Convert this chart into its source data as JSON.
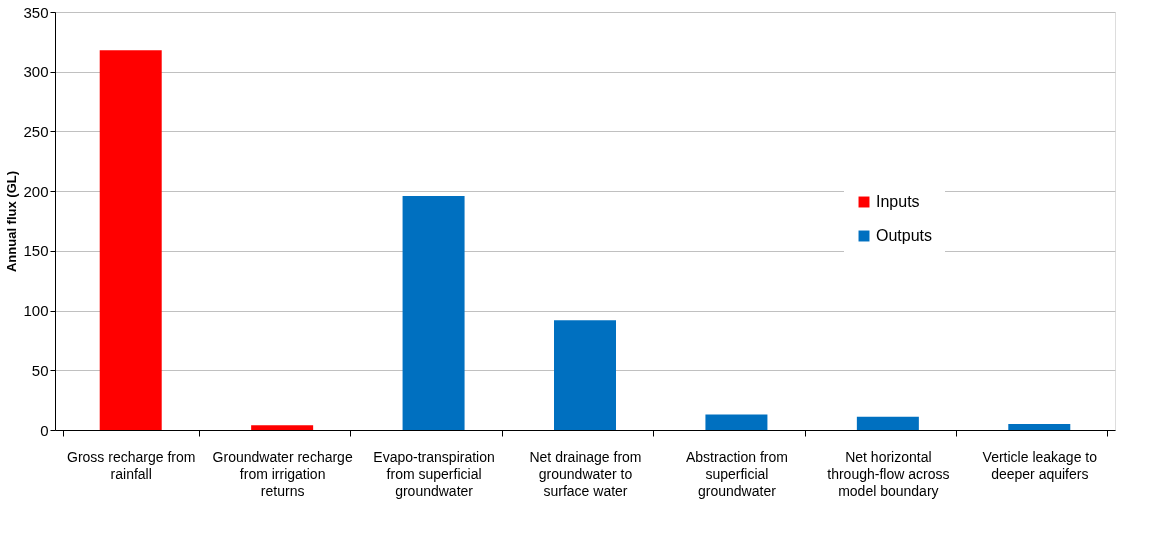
{
  "chart_data": {
    "type": "bar",
    "ylabel": "Annual flux (GL)",
    "categories": [
      "Gross recharge from rainfall",
      "Groundwater recharge from irrigation returns",
      "Evapo-transpiration from superficial groundwater",
      "Net drainage from groundwater to surface water",
      "Abstraction from superficial groundwater",
      "Net horizontal through-flow across model boundary",
      "Verticle leakage to deeper aquifers"
    ],
    "series": [
      {
        "name": "Inputs",
        "color": "#ff0000",
        "values": [
          318,
          4,
          null,
          null,
          null,
          null,
          null
        ]
      },
      {
        "name": "Outputs",
        "color": "#0070c0",
        "values": [
          null,
          null,
          196,
          92,
          13,
          11,
          5
        ]
      }
    ],
    "ylim": [
      0,
      350
    ],
    "yticks": [
      0,
      50,
      100,
      150,
      200,
      250,
      300,
      350
    ],
    "grid": "y",
    "legend": "top right"
  }
}
